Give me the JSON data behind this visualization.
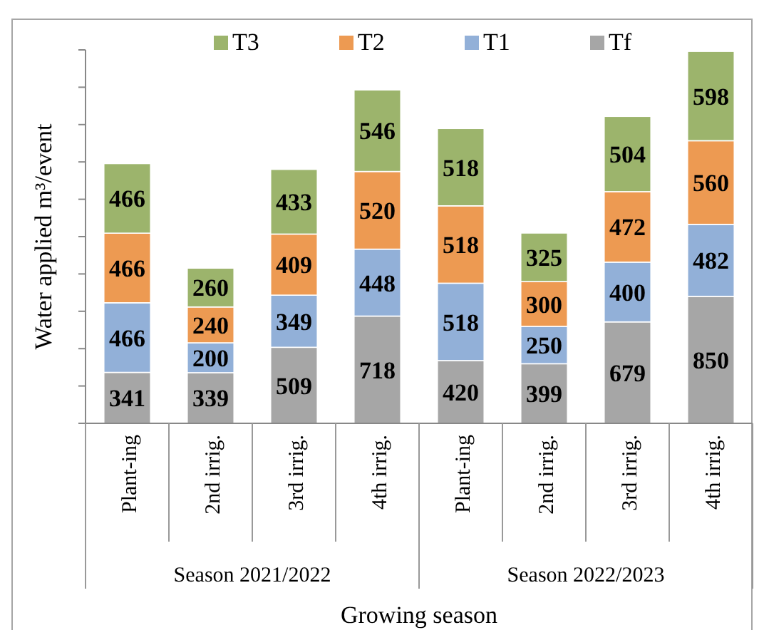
{
  "chart_data": {
    "type": "bar",
    "stacked": true,
    "xlabel": "Growing season",
    "ylabel": "Water applied m³/event",
    "categories": [
      "Plant-ing",
      "2nd irrig.",
      "3rd irrig.",
      "4th irrig.",
      "Plant-ing",
      "2nd irrig.",
      "3rd irrig.",
      "4th irrig."
    ],
    "series": [
      {
        "name": "Tf",
        "color": "#a6a6a6",
        "values": [
          341,
          339,
          509,
          718,
          420,
          399,
          679,
          850
        ]
      },
      {
        "name": "T1",
        "color": "#92b0d8",
        "values": [
          466,
          200,
          349,
          448,
          518,
          250,
          400,
          482
        ]
      },
      {
        "name": "T2",
        "color": "#ed9a52",
        "values": [
          466,
          240,
          409,
          520,
          518,
          300,
          472,
          560
        ]
      },
      {
        "name": "T3",
        "color": "#9cb46c",
        "values": [
          466,
          260,
          433,
          546,
          518,
          325,
          504,
          598
        ]
      }
    ],
    "ylim": [
      0,
      2500
    ],
    "yticks": [
      {
        "value": 0,
        "label": null
      },
      {
        "value": 250,
        "label": null
      },
      {
        "value": 500,
        "label": null
      },
      {
        "value": 750,
        "label": null
      },
      {
        "value": 1000,
        "label": null
      },
      {
        "value": 1250,
        "label": null
      },
      {
        "value": 1500,
        "label": null
      },
      {
        "value": 1750,
        "label": null
      },
      {
        "value": 2000,
        "label": null
      },
      {
        "value": 2250,
        "label": null
      },
      {
        "value": 2500,
        "label": null
      }
    ],
    "tick_labels": "x",
    "data_labels": true,
    "legend": "top",
    "grid": false,
    "annotations": [
      "Season 2021/2022",
      "Season 2022/2023"
    ]
  }
}
